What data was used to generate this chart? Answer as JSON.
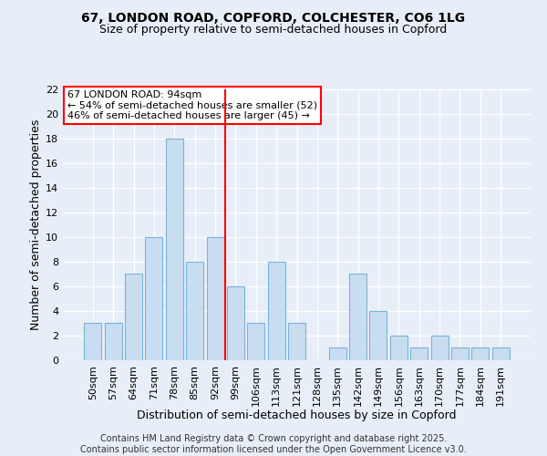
{
  "title1": "67, LONDON ROAD, COPFORD, COLCHESTER, CO6 1LG",
  "title2": "Size of property relative to semi-detached houses in Copford",
  "xlabel": "Distribution of semi-detached houses by size in Copford",
  "ylabel": "Number of semi-detached properties",
  "categories": [
    "50sqm",
    "57sqm",
    "64sqm",
    "71sqm",
    "78sqm",
    "85sqm",
    "92sqm",
    "99sqm",
    "106sqm",
    "113sqm",
    "121sqm",
    "128sqm",
    "135sqm",
    "142sqm",
    "149sqm",
    "156sqm",
    "163sqm",
    "170sqm",
    "177sqm",
    "184sqm",
    "191sqm"
  ],
  "values": [
    3,
    3,
    7,
    10,
    18,
    8,
    10,
    6,
    3,
    8,
    3,
    0,
    1,
    7,
    4,
    2,
    1,
    2,
    1,
    1,
    1
  ],
  "bar_color": "#c9ddf0",
  "bar_edge_color": "#7ab3d8",
  "vline_x_index": 6.5,
  "vline_color": "red",
  "annotation_title": "67 LONDON ROAD: 94sqm",
  "annotation_line1": "← 54% of semi-detached houses are smaller (52)",
  "annotation_line2": "46% of semi-detached houses are larger (45) →",
  "annotation_box_color": "white",
  "annotation_box_edge": "red",
  "ylim": [
    0,
    22
  ],
  "yticks": [
    0,
    2,
    4,
    6,
    8,
    10,
    12,
    14,
    16,
    18,
    20,
    22
  ],
  "background_color": "#e8eef8",
  "plot_bg_color": "#e8eef8",
  "footer": "Contains HM Land Registry data © Crown copyright and database right 2025.\nContains public sector information licensed under the Open Government Licence v3.0.",
  "title_fontsize": 10,
  "subtitle_fontsize": 9,
  "annotation_fontsize": 8,
  "ylabel_fontsize": 9,
  "xlabel_fontsize": 9,
  "tick_fontsize": 8,
  "footer_fontsize": 7
}
